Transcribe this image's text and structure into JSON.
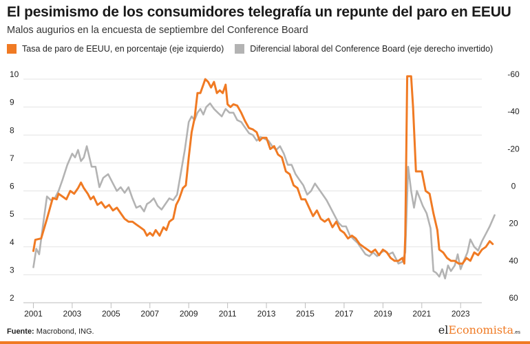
{
  "header": {
    "title": "El pesimismo de los consumidores telegrafía un repunte del paro en EEUU",
    "subtitle": "Malos augurios en la encuesta de septiembre del Conference Board"
  },
  "footer": {
    "source_label": "Fuente:",
    "source_text": "Macrobond, ING.",
    "brand_prefix": "el",
    "brand_accent": "Economista",
    "brand_suffix": ".es"
  },
  "colors": {
    "orange": "#f07a23",
    "gray": "#b3b3b3",
    "grid": "#e3e3e3"
  },
  "chart_data": {
    "type": "line",
    "title": "El pesimismo de los consumidores telegrafía un repunte del paro en EEUU",
    "subtitle": "Malos augurios en la encuesta de septiembre del Conference Board",
    "legend_placement": "top",
    "grid": true,
    "x_ticks": [
      "2001",
      "2003",
      "2005",
      "2007",
      "2009",
      "2011",
      "2013",
      "2015",
      "2017",
      "2019",
      "2021",
      "2023"
    ],
    "x_range": [
      2000.7,
      2024.8
    ],
    "y_left": {
      "range": [
        2,
        10
      ],
      "ticks": [
        "2",
        "3",
        "4",
        "5",
        "6",
        "7",
        "8",
        "9",
        "10"
      ]
    },
    "y_right": {
      "range": [
        60,
        -60
      ],
      "inverted": true,
      "ticks": [
        "60",
        "40",
        "20",
        "0",
        "-20",
        "-40",
        "-60"
      ]
    },
    "series": [
      {
        "name": "Tasa de paro de EEUU, en porcentaje (eje izquierdo)",
        "axis": "left",
        "color": "#f07a23",
        "points": [
          [
            2001.0,
            3.85
          ],
          [
            2001.1,
            4.25
          ],
          [
            2001.4,
            4.3
          ],
          [
            2001.7,
            5.0
          ],
          [
            2002.0,
            5.75
          ],
          [
            2002.2,
            5.7
          ],
          [
            2002.3,
            5.9
          ],
          [
            2002.5,
            5.8
          ],
          [
            2002.7,
            5.7
          ],
          [
            2002.9,
            6.0
          ],
          [
            2003.1,
            5.9
          ],
          [
            2003.3,
            6.1
          ],
          [
            2003.45,
            6.3
          ],
          [
            2003.6,
            6.1
          ],
          [
            2003.8,
            5.9
          ],
          [
            2003.95,
            5.7
          ],
          [
            2004.1,
            5.8
          ],
          [
            2004.3,
            5.5
          ],
          [
            2004.5,
            5.6
          ],
          [
            2004.7,
            5.4
          ],
          [
            2004.9,
            5.5
          ],
          [
            2005.1,
            5.3
          ],
          [
            2005.3,
            5.4
          ],
          [
            2005.5,
            5.2
          ],
          [
            2005.7,
            5.0
          ],
          [
            2005.9,
            4.9
          ],
          [
            2006.1,
            4.9
          ],
          [
            2006.3,
            4.8
          ],
          [
            2006.5,
            4.7
          ],
          [
            2006.7,
            4.6
          ],
          [
            2006.85,
            4.4
          ],
          [
            2007.0,
            4.5
          ],
          [
            2007.15,
            4.4
          ],
          [
            2007.3,
            4.6
          ],
          [
            2007.5,
            4.4
          ],
          [
            2007.7,
            4.7
          ],
          [
            2007.85,
            4.6
          ],
          [
            2008.0,
            4.9
          ],
          [
            2008.2,
            5.0
          ],
          [
            2008.35,
            5.5
          ],
          [
            2008.5,
            5.7
          ],
          [
            2008.7,
            6.1
          ],
          [
            2008.85,
            6.2
          ],
          [
            2009.0,
            7.2
          ],
          [
            2009.15,
            8.1
          ],
          [
            2009.3,
            8.6
          ],
          [
            2009.45,
            9.5
          ],
          [
            2009.6,
            9.5
          ],
          [
            2009.75,
            9.8
          ],
          [
            2009.85,
            10.0
          ],
          [
            2010.0,
            9.9
          ],
          [
            2010.15,
            9.7
          ],
          [
            2010.3,
            9.9
          ],
          [
            2010.45,
            9.5
          ],
          [
            2010.6,
            9.6
          ],
          [
            2010.75,
            9.5
          ],
          [
            2010.9,
            9.8
          ],
          [
            2011.0,
            9.1
          ],
          [
            2011.15,
            9.0
          ],
          [
            2011.3,
            9.1
          ],
          [
            2011.5,
            9.05
          ],
          [
            2011.7,
            8.8
          ],
          [
            2011.9,
            8.5
          ],
          [
            2012.1,
            8.25
          ],
          [
            2012.3,
            8.2
          ],
          [
            2012.5,
            8.1
          ],
          [
            2012.65,
            7.8
          ],
          [
            2012.8,
            7.9
          ],
          [
            2013.0,
            7.9
          ],
          [
            2013.2,
            7.5
          ],
          [
            2013.4,
            7.6
          ],
          [
            2013.6,
            7.3
          ],
          [
            2013.8,
            7.2
          ],
          [
            2014.0,
            6.7
          ],
          [
            2014.2,
            6.6
          ],
          [
            2014.4,
            6.2
          ],
          [
            2014.6,
            6.1
          ],
          [
            2014.8,
            5.7
          ],
          [
            2015.0,
            5.7
          ],
          [
            2015.2,
            5.4
          ],
          [
            2015.4,
            5.1
          ],
          [
            2015.6,
            5.3
          ],
          [
            2015.8,
            5.0
          ],
          [
            2016.0,
            4.9
          ],
          [
            2016.2,
            5.0
          ],
          [
            2016.4,
            4.7
          ],
          [
            2016.6,
            4.9
          ],
          [
            2016.8,
            4.6
          ],
          [
            2017.0,
            4.5
          ],
          [
            2017.2,
            4.3
          ],
          [
            2017.4,
            4.4
          ],
          [
            2017.6,
            4.3
          ],
          [
            2017.8,
            4.1
          ],
          [
            2018.0,
            4.0
          ],
          [
            2018.2,
            3.9
          ],
          [
            2018.4,
            3.8
          ],
          [
            2018.6,
            3.9
          ],
          [
            2018.8,
            3.7
          ],
          [
            2019.0,
            3.9
          ],
          [
            2019.2,
            3.8
          ],
          [
            2019.4,
            3.6
          ],
          [
            2019.6,
            3.5
          ],
          [
            2019.8,
            3.5
          ],
          [
            2020.0,
            3.6
          ],
          [
            2020.1,
            3.4
          ],
          [
            2020.15,
            4.4
          ],
          [
            2020.25,
            10.1
          ],
          [
            2020.45,
            10.1
          ],
          [
            2020.55,
            9.0
          ],
          [
            2020.7,
            6.7
          ],
          [
            2020.85,
            6.7
          ],
          [
            2021.0,
            6.7
          ],
          [
            2021.2,
            6.0
          ],
          [
            2021.4,
            5.9
          ],
          [
            2021.6,
            5.2
          ],
          [
            2021.8,
            4.6
          ],
          [
            2021.9,
            3.9
          ],
          [
            2022.1,
            3.8
          ],
          [
            2022.3,
            3.6
          ],
          [
            2022.5,
            3.5
          ],
          [
            2022.7,
            3.5
          ],
          [
            2022.9,
            3.4
          ],
          [
            2023.1,
            3.4
          ],
          [
            2023.3,
            3.6
          ],
          [
            2023.5,
            3.5
          ],
          [
            2023.7,
            3.8
          ],
          [
            2023.9,
            3.7
          ],
          [
            2024.1,
            3.9
          ],
          [
            2024.3,
            4.0
          ],
          [
            2024.5,
            4.2
          ],
          [
            2024.65,
            4.1
          ]
        ]
      },
      {
        "name": "Diferencial laboral del Conference Board (eje derecho invertido)",
        "axis": "right",
        "color": "#b3b3b3",
        "points": [
          [
            2001.0,
            41.0
          ],
          [
            2001.15,
            31.0
          ],
          [
            2001.3,
            34.0
          ],
          [
            2001.5,
            18.0
          ],
          [
            2001.7,
            3.0
          ],
          [
            2001.9,
            5.0
          ],
          [
            2002.1,
            4.0
          ],
          [
            2002.3,
            0.0
          ],
          [
            2002.5,
            -6.0
          ],
          [
            2002.75,
            -14.0
          ],
          [
            2003.0,
            -20.0
          ],
          [
            2003.15,
            -18.0
          ],
          [
            2003.3,
            -22.0
          ],
          [
            2003.45,
            -16.0
          ],
          [
            2003.6,
            -18.0
          ],
          [
            2003.75,
            -24.0
          ],
          [
            2004.0,
            -13.0
          ],
          [
            2004.2,
            -13.0
          ],
          [
            2004.4,
            -2.0
          ],
          [
            2004.6,
            -7.0
          ],
          [
            2004.85,
            -9.0
          ],
          [
            2005.1,
            -4.0
          ],
          [
            2005.3,
            0.0
          ],
          [
            2005.5,
            -2.0
          ],
          [
            2005.7,
            1.0
          ],
          [
            2005.9,
            -2.0
          ],
          [
            2006.1,
            4.0
          ],
          [
            2006.3,
            9.0
          ],
          [
            2006.5,
            8.0
          ],
          [
            2006.7,
            11.0
          ],
          [
            2006.85,
            7.0
          ],
          [
            2007.0,
            6.0
          ],
          [
            2007.2,
            4.0
          ],
          [
            2007.4,
            8.0
          ],
          [
            2007.6,
            10.0
          ],
          [
            2007.8,
            7.0
          ],
          [
            2008.0,
            4.0
          ],
          [
            2008.2,
            5.0
          ],
          [
            2008.4,
            2.0
          ],
          [
            2008.6,
            -10.0
          ],
          [
            2008.8,
            -22.0
          ],
          [
            2009.0,
            -37.0
          ],
          [
            2009.15,
            -40.0
          ],
          [
            2009.3,
            -38.0
          ],
          [
            2009.45,
            -42.0
          ],
          [
            2009.6,
            -44.0
          ],
          [
            2009.75,
            -41.0
          ],
          [
            2009.9,
            -45.0
          ],
          [
            2010.1,
            -47.0
          ],
          [
            2010.3,
            -44.0
          ],
          [
            2010.5,
            -42.0
          ],
          [
            2010.7,
            -40.0
          ],
          [
            2010.9,
            -44.0
          ],
          [
            2011.1,
            -42.0
          ],
          [
            2011.3,
            -42.0
          ],
          [
            2011.5,
            -38.0
          ],
          [
            2011.7,
            -37.0
          ],
          [
            2011.9,
            -34.0
          ],
          [
            2012.1,
            -31.0
          ],
          [
            2012.3,
            -30.0
          ],
          [
            2012.5,
            -27.0
          ],
          [
            2012.7,
            -29.0
          ],
          [
            2012.9,
            -28.0
          ],
          [
            2013.1,
            -27.0
          ],
          [
            2013.3,
            -24.0
          ],
          [
            2013.5,
            -22.0
          ],
          [
            2013.7,
            -24.0
          ],
          [
            2013.9,
            -20.0
          ],
          [
            2014.1,
            -14.0
          ],
          [
            2014.3,
            -14.0
          ],
          [
            2014.5,
            -9.0
          ],
          [
            2014.7,
            -6.0
          ],
          [
            2014.9,
            -3.0
          ],
          [
            2015.1,
            2.0
          ],
          [
            2015.3,
            0.0
          ],
          [
            2015.5,
            -4.0
          ],
          [
            2015.7,
            -1.0
          ],
          [
            2015.9,
            2.0
          ],
          [
            2016.1,
            5.0
          ],
          [
            2016.3,
            9.0
          ],
          [
            2016.5,
            13.0
          ],
          [
            2016.7,
            17.0
          ],
          [
            2016.9,
            19.0
          ],
          [
            2017.1,
            19.0
          ],
          [
            2017.3,
            24.0
          ],
          [
            2017.5,
            26.0
          ],
          [
            2017.7,
            28.0
          ],
          [
            2017.9,
            31.0
          ],
          [
            2018.1,
            34.0
          ],
          [
            2018.3,
            35.0
          ],
          [
            2018.5,
            33.0
          ],
          [
            2018.7,
            35.0
          ],
          [
            2018.9,
            33.0
          ],
          [
            2019.1,
            32.0
          ],
          [
            2019.3,
            34.0
          ],
          [
            2019.5,
            33.0
          ],
          [
            2019.65,
            36.0
          ],
          [
            2019.8,
            39.0
          ],
          [
            2020.0,
            38.0
          ],
          [
            2020.15,
            33.0
          ],
          [
            2020.3,
            -13.0
          ],
          [
            2020.45,
            0.0
          ],
          [
            2020.6,
            9.0
          ],
          [
            2020.75,
            0.0
          ],
          [
            2020.9,
            4.0
          ],
          [
            2021.05,
            8.0
          ],
          [
            2021.25,
            12.0
          ],
          [
            2021.45,
            20.0
          ],
          [
            2021.6,
            43.0
          ],
          [
            2021.75,
            44.0
          ],
          [
            2021.9,
            46.0
          ],
          [
            2022.05,
            42.0
          ],
          [
            2022.2,
            47.0
          ],
          [
            2022.35,
            40.0
          ],
          [
            2022.5,
            43.0
          ],
          [
            2022.7,
            40.0
          ],
          [
            2022.85,
            34.0
          ],
          [
            2023.0,
            42.0
          ],
          [
            2023.15,
            38.0
          ],
          [
            2023.35,
            33.0
          ],
          [
            2023.5,
            26.0
          ],
          [
            2023.7,
            30.0
          ],
          [
            2023.9,
            32.0
          ],
          [
            2024.1,
            27.0
          ],
          [
            2024.3,
            23.0
          ],
          [
            2024.5,
            19.0
          ],
          [
            2024.75,
            13.0
          ]
        ]
      }
    ]
  }
}
